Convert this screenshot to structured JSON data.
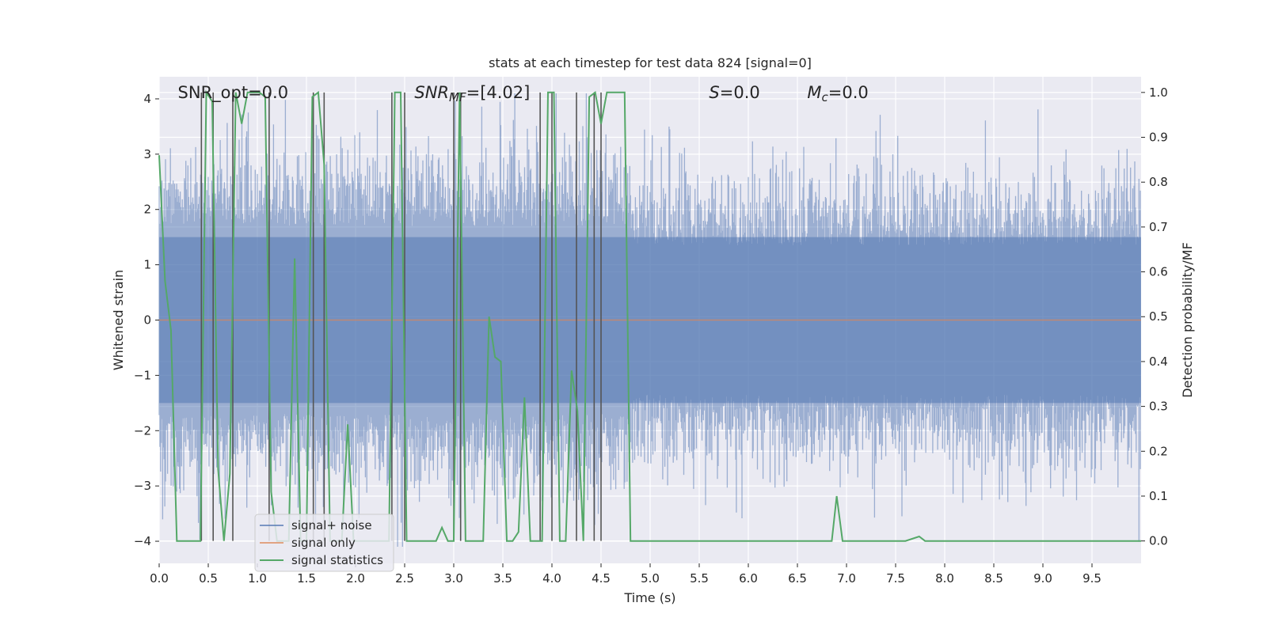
{
  "chart_data": {
    "type": "line",
    "title": "stats at each timestep for test data 824 [signal=0]",
    "xlabel": "Time (s)",
    "ylabel_left": "Whitened strain",
    "ylabel_right": "Detection probability/MF",
    "xlim": [
      0.0,
      10.0
    ],
    "ylim_left": [
      -4.4,
      4.4
    ],
    "ylim_right": [
      -0.05,
      1.035
    ],
    "xticks": [
      0.0,
      0.5,
      1.0,
      1.5,
      2.0,
      2.5,
      3.0,
      3.5,
      4.0,
      4.5,
      5.0,
      5.5,
      6.0,
      6.5,
      7.0,
      7.5,
      8.0,
      8.5,
      9.0,
      9.5
    ],
    "xtick_labels": [
      "0.0",
      "0.5",
      "1.0",
      "1.5",
      "2.0",
      "2.5",
      "3.0",
      "3.5",
      "4.0",
      "4.5",
      "5.0",
      "5.5",
      "6.0",
      "6.5",
      "7.0",
      "7.5",
      "8.0",
      "8.5",
      "9.0",
      "9.5"
    ],
    "yticks_left": [
      4,
      3,
      2,
      1,
      0,
      -1,
      -2,
      -3,
      -4
    ],
    "ytick_labels_left": [
      "4",
      "3",
      "2",
      "1",
      "0",
      "−1",
      "−2",
      "−3",
      "−4"
    ],
    "yticks_right": [
      1.0,
      0.9,
      0.8,
      0.7,
      0.6,
      0.5,
      0.4,
      0.3,
      0.2,
      0.1,
      0.0
    ],
    "ytick_labels_right": [
      "1.0",
      "0.9",
      "0.8",
      "0.7",
      "0.6",
      "0.5",
      "0.4",
      "0.3",
      "0.2",
      "0.1",
      "0.0"
    ],
    "grid": true,
    "legend_placement": "lower-left",
    "annotations": [
      {
        "segments": [
          {
            "text": "SNR_opt=0.0",
            "italic": false
          }
        ],
        "x": 0.19
      },
      {
        "segments": [
          {
            "text": "SNR",
            "italic": true
          },
          {
            "text": "MF",
            "italic": true,
            "sub": true
          },
          {
            "text": "=[4.02]",
            "italic": false
          }
        ],
        "x": 2.6
      },
      {
        "segments": [
          {
            "text": "S",
            "italic": true
          },
          {
            "text": "=0.0",
            "italic": false
          }
        ],
        "x": 5.6
      },
      {
        "segments": [
          {
            "text": "M",
            "italic": true
          },
          {
            "text": "c",
            "italic": true,
            "sub": true
          },
          {
            "text": "=0.0",
            "italic": false
          }
        ],
        "x": 6.6
      }
    ],
    "series": [
      {
        "name": "signal+ noise",
        "color": "#4c72b0",
        "kind": "noise",
        "envelope_early": [
          -2.0,
          2.0
        ],
        "envelope_late": [
          -1.6,
          1.6
        ],
        "transition_x": 4.8
      },
      {
        "name": "signal only",
        "color": "#dd8452",
        "x": [
          0.0,
          10.0
        ],
        "y": [
          0.0,
          0.0
        ]
      },
      {
        "name": "signal statistics",
        "color": "#55a868",
        "x": [
          0.0,
          0.06,
          0.12,
          0.18,
          0.24,
          0.3,
          0.36,
          0.42,
          0.48,
          0.54,
          0.6,
          0.66,
          0.72,
          0.78,
          0.84,
          0.9,
          0.96,
          1.02,
          1.08,
          1.14,
          1.2,
          1.26,
          1.32,
          1.38,
          1.44,
          1.5,
          1.56,
          1.62,
          1.68,
          1.74,
          1.8,
          1.86,
          1.92,
          1.98,
          2.04,
          2.1,
          2.16,
          2.22,
          2.28,
          2.34,
          2.4,
          2.46,
          2.52,
          2.58,
          2.64,
          2.7,
          2.76,
          2.82,
          2.88,
          2.94,
          3.0,
          3.06,
          3.12,
          3.18,
          3.24,
          3.3,
          3.36,
          3.42,
          3.48,
          3.54,
          3.6,
          3.66,
          3.72,
          3.78,
          3.84,
          3.9,
          3.96,
          4.02,
          4.08,
          4.14,
          4.2,
          4.26,
          4.32,
          4.38,
          4.44,
          4.5,
          4.56,
          4.62,
          4.68,
          4.74,
          4.8,
          6.85,
          6.9,
          6.96,
          7.6,
          7.74,
          7.8,
          10.0
        ],
        "y": [
          0.86,
          0.58,
          0.47,
          0.0,
          0.0,
          0.0,
          0.0,
          0.0,
          1.0,
          0.98,
          0.16,
          0.0,
          0.15,
          1.0,
          0.93,
          1.0,
          1.0,
          1.0,
          0.99,
          0.11,
          0.0,
          0.0,
          0.0,
          0.63,
          0.0,
          0.0,
          0.99,
          1.0,
          0.84,
          0.0,
          0.0,
          0.0,
          0.26,
          0.0,
          0.0,
          0.0,
          0.0,
          0.0,
          0.0,
          0.0,
          1.0,
          1.0,
          0.0,
          0.0,
          0.0,
          0.0,
          0.0,
          0.0,
          0.03,
          0.0,
          0.0,
          1.0,
          0.0,
          0.0,
          0.0,
          0.0,
          0.5,
          0.41,
          0.4,
          0.0,
          0.0,
          0.02,
          0.32,
          0.0,
          0.0,
          0.0,
          1.0,
          1.0,
          0.0,
          0.0,
          0.38,
          0.29,
          0.0,
          0.99,
          1.0,
          0.93,
          1.0,
          1.0,
          1.0,
          1.0,
          0.0,
          0.0,
          0.1,
          0.0,
          0.0,
          0.01,
          0.0,
          0.0
        ]
      }
    ],
    "vlines_x": [
      0.43,
      0.55,
      0.75,
      1.12,
      1.57,
      1.68,
      2.37,
      2.5,
      3.0,
      3.07,
      3.88,
      4.0,
      4.25,
      4.43,
      4.5
    ]
  }
}
